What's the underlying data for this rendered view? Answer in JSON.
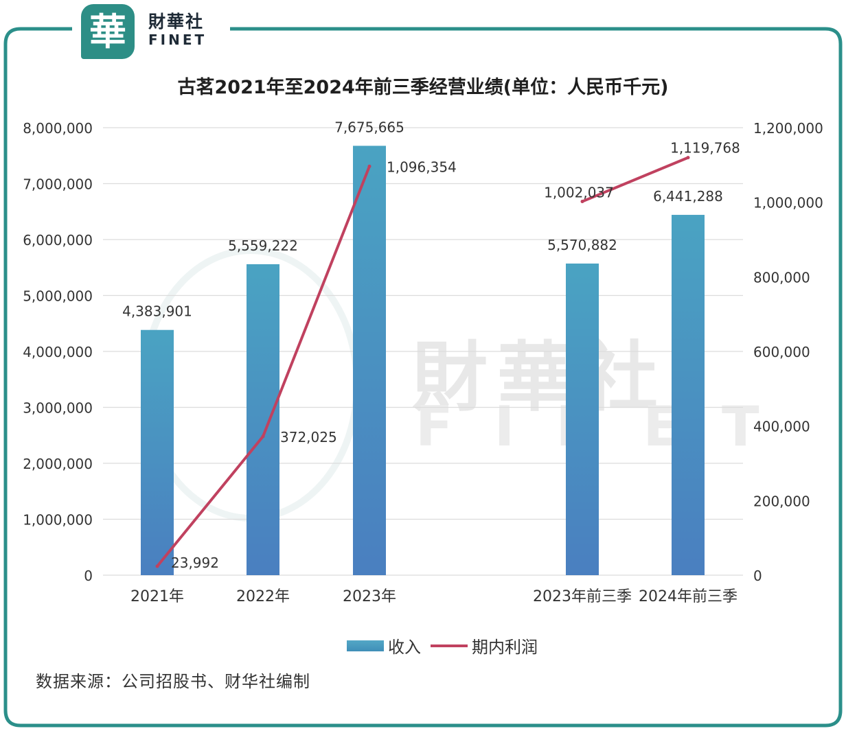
{
  "brand": {
    "logo_char": "華",
    "name_cn": "財華社",
    "name_en": "FINET"
  },
  "watermark": {
    "cn": "財華社",
    "en": "FINET"
  },
  "chart_data": {
    "type": "bar",
    "title": "古茗2021年至2024年前三季经营业绩(单位：人民币千元)",
    "categories": [
      "2021年",
      "2022年",
      "2023年",
      "2023年前三季",
      "2024年前三季"
    ],
    "series": [
      {
        "name": "收入",
        "type": "bar",
        "axis": "left",
        "values": [
          4383901,
          5559222,
          7675665,
          5570882,
          6441288
        ],
        "labels": [
          "4,383,901",
          "5,559,222",
          "7,675,665",
          "5,570,882",
          "6,441,288"
        ]
      },
      {
        "name": "期内利润",
        "type": "line",
        "axis": "right",
        "values": [
          23992,
          372025,
          1096354,
          1002037,
          1119768
        ],
        "labels": [
          "23,992",
          "372,025",
          "1,096,354",
          "1,002,037",
          "1,119,768"
        ]
      }
    ],
    "ylim_left": [
      0,
      8000000
    ],
    "ylim_right": [
      0,
      1200000
    ],
    "yticks_left": [
      "0",
      "1,000,000",
      "2,000,000",
      "3,000,000",
      "4,000,000",
      "5,000,000",
      "6,000,000",
      "7,000,000",
      "8,000,000"
    ],
    "yticks_right": [
      "0",
      "200,000",
      "400,000",
      "600,000",
      "800,000",
      "1,000,000",
      "1,200,000"
    ],
    "grid": true,
    "legend_position": "bottom",
    "colors": {
      "bar": "#4aa3c2",
      "bar_bottom": "#4a7fc0",
      "line": "#c0415f",
      "frame": "#2b8f8a"
    }
  },
  "source": "数据来源：公司招股书、财华社编制"
}
